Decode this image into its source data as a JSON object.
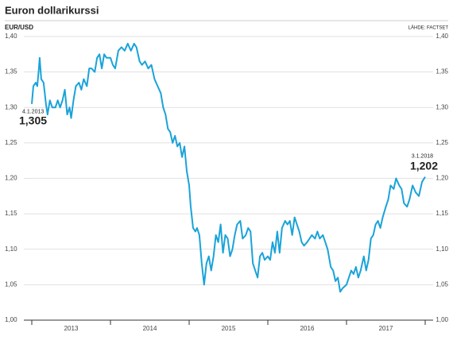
{
  "chart_data": {
    "type": "line",
    "title": "Euron dollarikurssi",
    "y_label": "EUR/USD",
    "source": "LÄHDE: FACTSET",
    "years": [
      "2013",
      "2014",
      "2015",
      "2016",
      "2017"
    ],
    "xlim": [
      2013,
      2018
    ],
    "xticks": [
      2013,
      2014,
      2015,
      2016,
      2017,
      2018
    ],
    "ylim": [
      1.0,
      1.4
    ],
    "yticks": [
      {
        "value": 1.0,
        "label": "1,00"
      },
      {
        "value": 1.05,
        "label": "1,05"
      },
      {
        "value": 1.1,
        "label": "1,10"
      },
      {
        "value": 1.15,
        "label": "1,15"
      },
      {
        "value": 1.2,
        "label": "1,20"
      },
      {
        "value": 1.25,
        "label": "1,25"
      },
      {
        "value": 1.3,
        "label": "1,30"
      },
      {
        "value": 1.35,
        "label": "1,35"
      },
      {
        "value": 1.4,
        "label": "1,40"
      }
    ],
    "grid": true,
    "annotations": [
      {
        "date": "4.1.2013",
        "label": "1,305"
      },
      {
        "date": "3.1.2018",
        "label": "1,202"
      }
    ],
    "series": [
      {
        "name": "EUR/USD",
        "color": "#1aa3d9",
        "x": [
          2013.0,
          2013.02,
          2013.05,
          2013.07,
          2013.09,
          2013.1,
          2013.12,
          2013.15,
          2013.18,
          2013.2,
          2013.23,
          2013.26,
          2013.3,
          2013.33,
          2013.36,
          2013.39,
          2013.42,
          2013.45,
          2013.48,
          2013.5,
          2013.53,
          2013.56,
          2013.6,
          2013.63,
          2013.66,
          2013.7,
          2013.73,
          2013.76,
          2013.8,
          2013.83,
          2013.86,
          2013.89,
          2013.92,
          2013.95,
          2014.0,
          2014.03,
          2014.06,
          2014.1,
          2014.14,
          2014.18,
          2014.22,
          2014.26,
          2014.3,
          2014.33,
          2014.37,
          2014.4,
          2014.44,
          2014.48,
          2014.52,
          2014.56,
          2014.6,
          2014.64,
          2014.67,
          2014.7,
          2014.73,
          2014.76,
          2014.79,
          2014.82,
          2014.85,
          2014.88,
          2014.91,
          2014.94,
          2014.97,
          2015.0,
          2015.02,
          2015.05,
          2015.08,
          2015.1,
          2015.13,
          2015.16,
          2015.19,
          2015.22,
          2015.25,
          2015.28,
          2015.31,
          2015.34,
          2015.37,
          2015.4,
          2015.43,
          2015.46,
          2015.49,
          2015.52,
          2015.55,
          2015.58,
          2015.61,
          2015.65,
          2015.68,
          2015.72,
          2015.75,
          2015.78,
          2015.81,
          2015.84,
          2015.87,
          2015.9,
          2015.93,
          2015.96,
          2016.0,
          2016.03,
          2016.06,
          2016.09,
          2016.12,
          2016.15,
          2016.18,
          2016.22,
          2016.25,
          2016.28,
          2016.31,
          2016.34,
          2016.37,
          2016.4,
          2016.43,
          2016.46,
          2016.5,
          2016.53,
          2016.56,
          2016.6,
          2016.63,
          2016.66,
          2016.7,
          2016.73,
          2016.76,
          2016.8,
          2016.83,
          2016.86,
          2016.89,
          2016.92,
          2016.95,
          2017.0,
          2017.03,
          2017.06,
          2017.09,
          2017.12,
          2017.15,
          2017.18,
          2017.22,
          2017.25,
          2017.28,
          2017.31,
          2017.34,
          2017.37,
          2017.4,
          2017.43,
          2017.46,
          2017.5,
          2017.53,
          2017.56,
          2017.6,
          2017.63,
          2017.67,
          2017.7,
          2017.73,
          2017.77,
          2017.8,
          2017.84,
          2017.88,
          2017.92,
          2017.96,
          2018.0
        ],
        "values": [
          1.305,
          1.33,
          1.335,
          1.33,
          1.355,
          1.37,
          1.34,
          1.335,
          1.305,
          1.29,
          1.31,
          1.3,
          1.3,
          1.31,
          1.3,
          1.31,
          1.325,
          1.29,
          1.3,
          1.285,
          1.31,
          1.33,
          1.335,
          1.325,
          1.34,
          1.33,
          1.355,
          1.355,
          1.35,
          1.37,
          1.375,
          1.355,
          1.375,
          1.37,
          1.37,
          1.36,
          1.355,
          1.38,
          1.385,
          1.38,
          1.39,
          1.38,
          1.39,
          1.385,
          1.365,
          1.36,
          1.365,
          1.355,
          1.36,
          1.34,
          1.33,
          1.32,
          1.3,
          1.29,
          1.27,
          1.265,
          1.25,
          1.26,
          1.245,
          1.25,
          1.23,
          1.245,
          1.21,
          1.19,
          1.16,
          1.13,
          1.125,
          1.13,
          1.12,
          1.08,
          1.05,
          1.08,
          1.09,
          1.07,
          1.09,
          1.12,
          1.11,
          1.135,
          1.095,
          1.12,
          1.115,
          1.09,
          1.1,
          1.12,
          1.135,
          1.14,
          1.115,
          1.12,
          1.13,
          1.125,
          1.08,
          1.07,
          1.06,
          1.09,
          1.095,
          1.085,
          1.09,
          1.085,
          1.11,
          1.095,
          1.125,
          1.095,
          1.13,
          1.14,
          1.135,
          1.14,
          1.12,
          1.145,
          1.135,
          1.125,
          1.11,
          1.105,
          1.11,
          1.115,
          1.12,
          1.115,
          1.125,
          1.115,
          1.12,
          1.11,
          1.1,
          1.075,
          1.07,
          1.055,
          1.06,
          1.04,
          1.045,
          1.05,
          1.06,
          1.07,
          1.065,
          1.075,
          1.06,
          1.07,
          1.09,
          1.07,
          1.085,
          1.115,
          1.12,
          1.135,
          1.14,
          1.13,
          1.145,
          1.16,
          1.17,
          1.19,
          1.185,
          1.2,
          1.19,
          1.185,
          1.165,
          1.16,
          1.17,
          1.19,
          1.18,
          1.175,
          1.195,
          1.202
        ]
      }
    ]
  }
}
